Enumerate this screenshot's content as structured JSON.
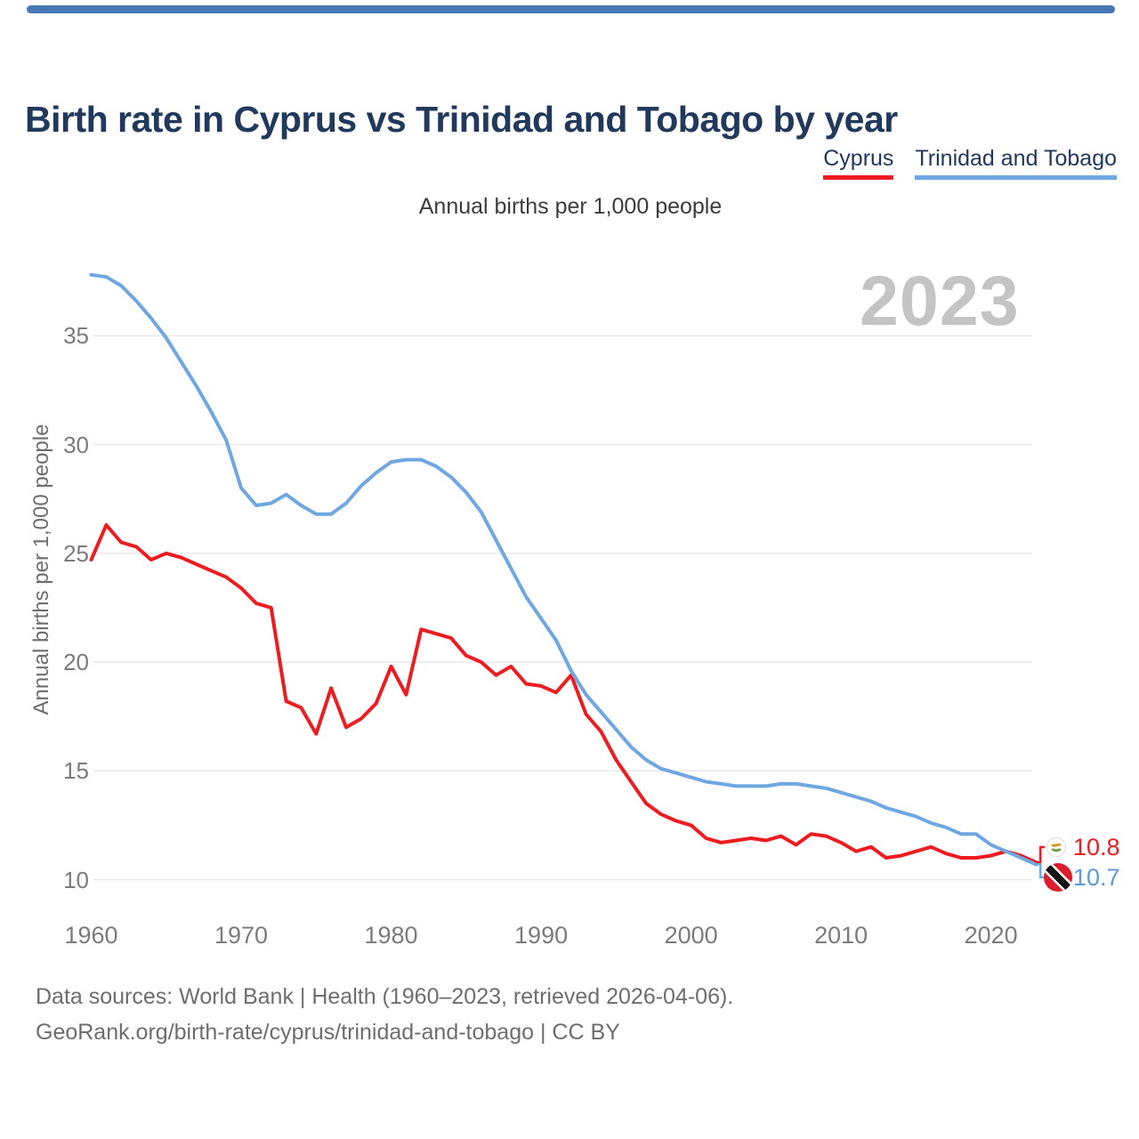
{
  "page": {
    "top_bar_color": "#4678b4",
    "background_color": "#ffffff"
  },
  "header": {
    "title": "Birth rate in Cyprus vs Trinidad and Tobago by year"
  },
  "legend": {
    "items": [
      {
        "label": "Cyprus",
        "color": "#ee1b20"
      },
      {
        "label": "Trinidad and Tobago",
        "color": "#6ea7e2"
      }
    ]
  },
  "chart": {
    "subtitle": "Annual births per 1,000 people",
    "y_axis_title": "Annual births per 1,000 people",
    "watermark": "2023",
    "gridline_color": "#e9e9e9",
    "tick_color": "#7c7c7c"
  },
  "chart_data": {
    "type": "line",
    "title": "Birth rate in Cyprus vs Trinidad and Tobago by year",
    "unit_label": "Annual births per 1,000 people",
    "grid": "horizontal",
    "legend_position": "top-right",
    "x_ticks": [
      1960,
      1970,
      1980,
      1990,
      2000,
      2010,
      2020
    ],
    "y_ticks": [
      10,
      15,
      20,
      25,
      30,
      35
    ],
    "ylim": [
      9.4,
      38.6
    ],
    "x": [
      1960,
      1961,
      1962,
      1963,
      1964,
      1965,
      1966,
      1967,
      1968,
      1969,
      1970,
      1971,
      1972,
      1973,
      1974,
      1975,
      1976,
      1977,
      1978,
      1979,
      1980,
      1981,
      1982,
      1983,
      1984,
      1985,
      1986,
      1987,
      1988,
      1989,
      1990,
      1991,
      1992,
      1993,
      1994,
      1995,
      1996,
      1997,
      1998,
      1999,
      2000,
      2001,
      2002,
      2003,
      2004,
      2005,
      2006,
      2007,
      2008,
      2009,
      2010,
      2011,
      2012,
      2013,
      2014,
      2015,
      2016,
      2017,
      2018,
      2019,
      2020,
      2021,
      2022,
      2023
    ],
    "series": [
      {
        "name": "Cyprus",
        "color": "#ee1b20",
        "values": [
          24.7,
          26.3,
          25.5,
          25.3,
          24.7,
          25.0,
          24.8,
          24.5,
          24.2,
          23.9,
          23.4,
          22.7,
          22.5,
          18.2,
          17.9,
          16.7,
          18.8,
          17.0,
          17.4,
          18.1,
          19.8,
          18.5,
          21.5,
          21.3,
          21.1,
          20.3,
          20.0,
          19.4,
          19.8,
          19.0,
          18.9,
          18.6,
          19.4,
          17.6,
          16.8,
          15.5,
          14.5,
          13.5,
          13.0,
          12.7,
          12.5,
          11.9,
          11.7,
          11.8,
          11.9,
          11.8,
          12.0,
          11.6,
          12.1,
          12.0,
          11.7,
          11.3,
          11.5,
          11.0,
          11.1,
          11.3,
          11.5,
          11.2,
          11.0,
          11.0,
          11.1,
          11.3,
          11.1,
          10.8
        ]
      },
      {
        "name": "Trinidad and Tobago",
        "color": "#6ea7e2",
        "values": [
          37.8,
          37.7,
          37.3,
          36.6,
          35.8,
          34.9,
          33.8,
          32.7,
          31.5,
          30.2,
          28.0,
          27.2,
          27.3,
          27.7,
          27.2,
          26.8,
          26.8,
          27.3,
          28.1,
          28.7,
          29.2,
          29.3,
          29.3,
          29.0,
          28.5,
          27.8,
          26.9,
          25.6,
          24.3,
          23.0,
          22.0,
          21.0,
          19.6,
          18.5,
          17.7,
          16.9,
          16.1,
          15.5,
          15.1,
          14.9,
          14.7,
          14.5,
          14.4,
          14.3,
          14.3,
          14.3,
          14.4,
          14.4,
          14.3,
          14.2,
          14.0,
          13.8,
          13.6,
          13.3,
          13.1,
          12.9,
          12.6,
          12.4,
          12.1,
          12.1,
          11.6,
          11.3,
          11.0,
          10.7
        ]
      }
    ],
    "end_labels": [
      {
        "series": "Cyprus",
        "value": "10.8",
        "flag": "cyprus-flag",
        "color": "#ee1b20"
      },
      {
        "series": "Trinidad and Tobago",
        "value": "10.7",
        "flag": "trinidad-and-tobago-flag",
        "color": "#5b9bd9"
      }
    ]
  },
  "footer": {
    "line1": "Data sources: World Bank | Health (1960–2023, retrieved 2026-04-06).",
    "line2": "GeoRank.org/birth-rate/cyprus/trinidad-and-tobago | CC BY"
  }
}
